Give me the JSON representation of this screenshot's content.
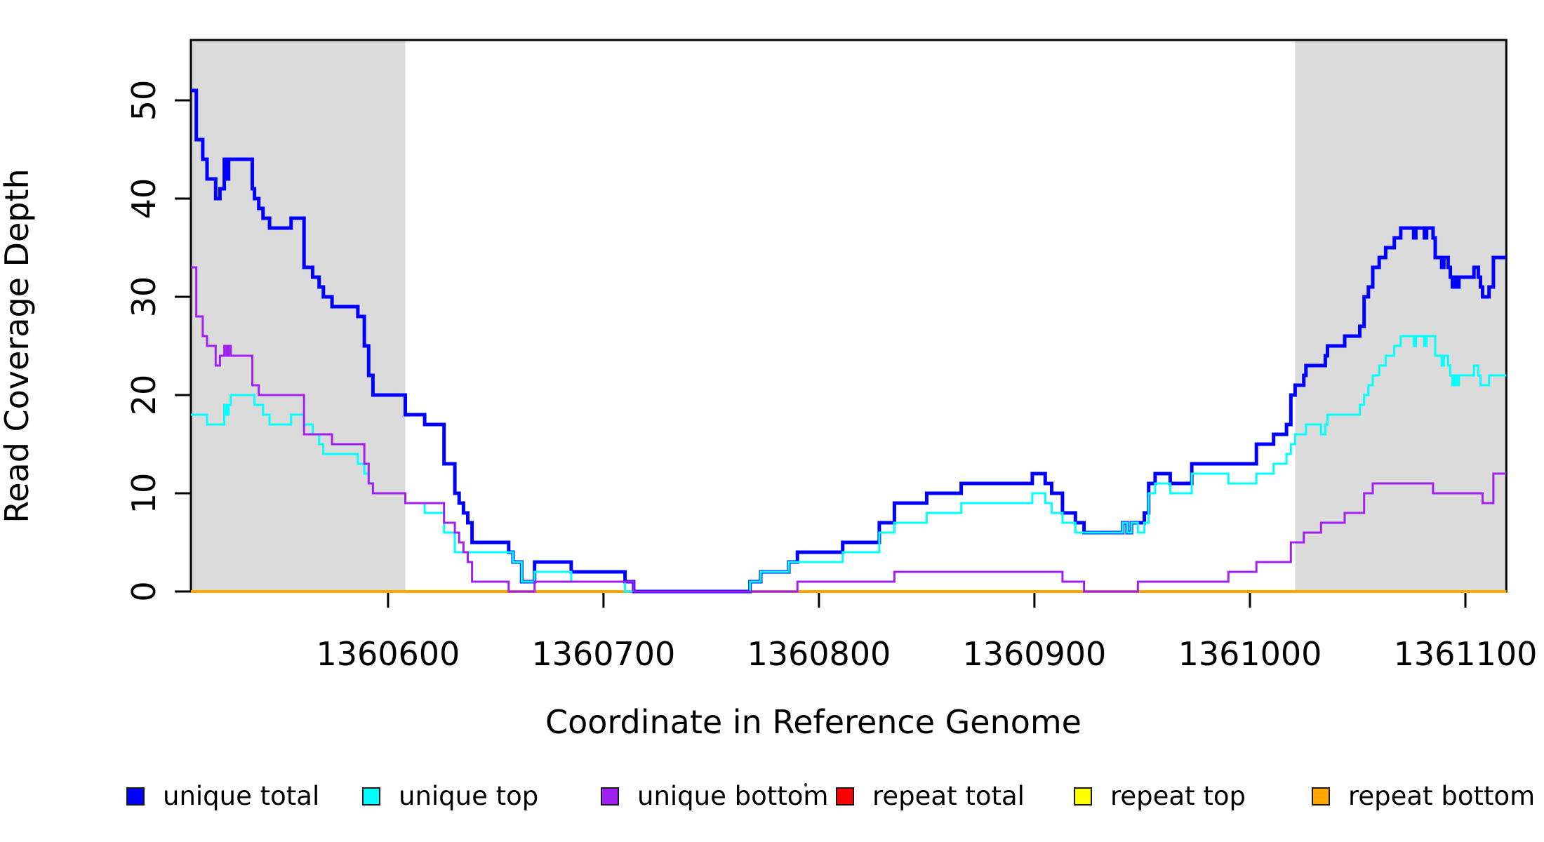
{
  "chart_data": {
    "type": "line",
    "subtype": "step-post",
    "title": "",
    "xlabel": "Coordinate in Reference Genome",
    "ylabel": "Read Coverage Depth",
    "xlim": [
      1360508.5,
      1361119
    ],
    "ylim": [
      0,
      56.14
    ],
    "x_ticks": [
      1360600,
      1360700,
      1360800,
      1360900,
      1361000,
      1361100
    ],
    "y_ticks": [
      0,
      10,
      20,
      30,
      40,
      50
    ],
    "grid": false,
    "legend_position": "bottom",
    "axis_color": "#000000",
    "highlight_regions": [
      {
        "x0": 1360508.5,
        "x1": 1360608,
        "color": "#DBDBDB"
      },
      {
        "x0": 1361021,
        "x1": 1361119,
        "color": "#DBDBDB"
      }
    ],
    "series": [
      {
        "name": "unique total",
        "color": "#0000FF",
        "line_width": 5,
        "points": [
          [
            1360508.5,
            51
          ],
          [
            1360511,
            46
          ],
          [
            1360514,
            44
          ],
          [
            1360516,
            42
          ],
          [
            1360520,
            40
          ],
          [
            1360522,
            41
          ],
          [
            1360524,
            44
          ],
          [
            1360525,
            42
          ],
          [
            1360526,
            44
          ],
          [
            1360537,
            41
          ],
          [
            1360538,
            40
          ],
          [
            1360540,
            39
          ],
          [
            1360542,
            38
          ],
          [
            1360545,
            37
          ],
          [
            1360555,
            38
          ],
          [
            1360561,
            33
          ],
          [
            1360565,
            32
          ],
          [
            1360568,
            31
          ],
          [
            1360570,
            30
          ],
          [
            1360574,
            29
          ],
          [
            1360586,
            28
          ],
          [
            1360589,
            25
          ],
          [
            1360591,
            22
          ],
          [
            1360593,
            20
          ],
          [
            1360608,
            18
          ],
          [
            1360617,
            17
          ],
          [
            1360626,
            13
          ],
          [
            1360631,
            10
          ],
          [
            1360633,
            9
          ],
          [
            1360635,
            8
          ],
          [
            1360637,
            7
          ],
          [
            1360639,
            5
          ],
          [
            1360656,
            4
          ],
          [
            1360658,
            3
          ],
          [
            1360662,
            1
          ],
          [
            1360668,
            3
          ],
          [
            1360685,
            2
          ],
          [
            1360710,
            1
          ],
          [
            1360714,
            0
          ],
          [
            1360768,
            1
          ],
          [
            1360773,
            2
          ],
          [
            1360786,
            3
          ],
          [
            1360790,
            4
          ],
          [
            1360811,
            5
          ],
          [
            1360828,
            7
          ],
          [
            1360835,
            9
          ],
          [
            1360850,
            10
          ],
          [
            1360866,
            11
          ],
          [
            1360899,
            12
          ],
          [
            1360905,
            11
          ],
          [
            1360908,
            10
          ],
          [
            1360913,
            8
          ],
          [
            1360919,
            7
          ],
          [
            1360923,
            6
          ],
          [
            1360941,
            7
          ],
          [
            1360943,
            6
          ],
          [
            1360945,
            7
          ],
          [
            1360951,
            8
          ],
          [
            1360953,
            11
          ],
          [
            1360956,
            12
          ],
          [
            1360963,
            11
          ],
          [
            1360973,
            13
          ],
          [
            1361003,
            15
          ],
          [
            1361011,
            16
          ],
          [
            1361017,
            17
          ],
          [
            1361019,
            20
          ],
          [
            1361021,
            21
          ],
          [
            1361025,
            22
          ],
          [
            1361026,
            23
          ],
          [
            1361035,
            24
          ],
          [
            1361036,
            25
          ],
          [
            1361044,
            26
          ],
          [
            1361051,
            27
          ],
          [
            1361053,
            30
          ],
          [
            1361055,
            31
          ],
          [
            1361057,
            33
          ],
          [
            1361060,
            34
          ],
          [
            1361063,
            35
          ],
          [
            1361067,
            36
          ],
          [
            1361070,
            37
          ],
          [
            1361076,
            36
          ],
          [
            1361077,
            37
          ],
          [
            1361081,
            36
          ],
          [
            1361082,
            37
          ],
          [
            1361085,
            36
          ],
          [
            1361086,
            34
          ],
          [
            1361089,
            33
          ],
          [
            1361090,
            34
          ],
          [
            1361092,
            33
          ],
          [
            1361093,
            32
          ],
          [
            1361094,
            31
          ],
          [
            1361095,
            32
          ],
          [
            1361096,
            31
          ],
          [
            1361097,
            32
          ],
          [
            1361104,
            33
          ],
          [
            1361106,
            32
          ],
          [
            1361107,
            31
          ],
          [
            1361108,
            30
          ],
          [
            1361111,
            31
          ],
          [
            1361113,
            34
          ]
        ]
      },
      {
        "name": "unique top",
        "color": "#00FFFF",
        "line_width": 3,
        "points": [
          [
            1360508.5,
            18
          ],
          [
            1360516,
            17
          ],
          [
            1360524,
            19
          ],
          [
            1360525,
            18
          ],
          [
            1360526,
            19
          ],
          [
            1360527,
            20
          ],
          [
            1360538,
            19
          ],
          [
            1360542,
            18
          ],
          [
            1360545,
            17
          ],
          [
            1360555,
            18
          ],
          [
            1360561,
            17
          ],
          [
            1360565,
            16
          ],
          [
            1360568,
            15
          ],
          [
            1360570,
            14
          ],
          [
            1360586,
            13
          ],
          [
            1360589,
            12
          ],
          [
            1360591,
            11
          ],
          [
            1360593,
            10
          ],
          [
            1360608,
            9
          ],
          [
            1360617,
            8
          ],
          [
            1360626,
            6
          ],
          [
            1360631,
            4
          ],
          [
            1360658,
            3
          ],
          [
            1360662,
            1
          ],
          [
            1360668,
            2
          ],
          [
            1360685,
            1
          ],
          [
            1360710,
            0
          ],
          [
            1360768,
            1
          ],
          [
            1360773,
            2
          ],
          [
            1360786,
            3
          ],
          [
            1360811,
            4
          ],
          [
            1360828,
            6
          ],
          [
            1360835,
            7
          ],
          [
            1360850,
            8
          ],
          [
            1360866,
            9
          ],
          [
            1360899,
            10
          ],
          [
            1360905,
            9
          ],
          [
            1360908,
            8
          ],
          [
            1360913,
            7
          ],
          [
            1360919,
            6
          ],
          [
            1360941,
            7
          ],
          [
            1360943,
            6
          ],
          [
            1360945,
            7
          ],
          [
            1360948,
            6
          ],
          [
            1360951,
            7
          ],
          [
            1360953,
            10
          ],
          [
            1360956,
            11
          ],
          [
            1360963,
            10
          ],
          [
            1360973,
            12
          ],
          [
            1360990,
            11
          ],
          [
            1361003,
            12
          ],
          [
            1361011,
            13
          ],
          [
            1361017,
            14
          ],
          [
            1361019,
            15
          ],
          [
            1361021,
            16
          ],
          [
            1361026,
            17
          ],
          [
            1361033,
            16
          ],
          [
            1361035,
            17
          ],
          [
            1361036,
            18
          ],
          [
            1361051,
            19
          ],
          [
            1361053,
            20
          ],
          [
            1361055,
            21
          ],
          [
            1361057,
            22
          ],
          [
            1361060,
            23
          ],
          [
            1361063,
            24
          ],
          [
            1361067,
            25
          ],
          [
            1361070,
            26
          ],
          [
            1361076,
            25
          ],
          [
            1361077,
            26
          ],
          [
            1361081,
            25
          ],
          [
            1361082,
            26
          ],
          [
            1361086,
            24
          ],
          [
            1361089,
            23
          ],
          [
            1361090,
            24
          ],
          [
            1361092,
            23
          ],
          [
            1361093,
            22
          ],
          [
            1361094,
            21
          ],
          [
            1361095,
            22
          ],
          [
            1361096,
            21
          ],
          [
            1361097,
            22
          ],
          [
            1361104,
            23
          ],
          [
            1361106,
            22
          ],
          [
            1361107,
            21
          ],
          [
            1361111,
            22
          ]
        ]
      },
      {
        "name": "unique bottom",
        "color": "#A020F0",
        "line_width": 3,
        "points": [
          [
            1360508.5,
            33
          ],
          [
            1360511,
            28
          ],
          [
            1360514,
            26
          ],
          [
            1360516,
            25
          ],
          [
            1360520,
            23
          ],
          [
            1360522,
            24
          ],
          [
            1360524,
            25
          ],
          [
            1360525,
            24
          ],
          [
            1360526,
            25
          ],
          [
            1360527,
            24
          ],
          [
            1360537,
            21
          ],
          [
            1360540,
            20
          ],
          [
            1360561,
            16
          ],
          [
            1360574,
            15
          ],
          [
            1360589,
            13
          ],
          [
            1360591,
            11
          ],
          [
            1360593,
            10
          ],
          [
            1360608,
            9
          ],
          [
            1360626,
            7
          ],
          [
            1360631,
            6
          ],
          [
            1360633,
            5
          ],
          [
            1360635,
            4
          ],
          [
            1360637,
            3
          ],
          [
            1360639,
            1
          ],
          [
            1360656,
            0
          ],
          [
            1360668,
            1
          ],
          [
            1360714,
            0
          ],
          [
            1360790,
            1
          ],
          [
            1360835,
            2
          ],
          [
            1360913,
            1
          ],
          [
            1360923,
            0
          ],
          [
            1360948,
            1
          ],
          [
            1360990,
            2
          ],
          [
            1361003,
            3
          ],
          [
            1361019,
            5
          ],
          [
            1361025,
            6
          ],
          [
            1361033,
            7
          ],
          [
            1361044,
            8
          ],
          [
            1361053,
            10
          ],
          [
            1361057,
            11
          ],
          [
            1361085,
            10
          ],
          [
            1361108,
            9
          ],
          [
            1361113,
            12
          ]
        ]
      },
      {
        "name": "repeat total",
        "color": "#FF0000",
        "line_width": 3,
        "points": [
          [
            1360508.5,
            0
          ]
        ]
      },
      {
        "name": "repeat top",
        "color": "#FFFF00",
        "line_width": 3,
        "points": [
          [
            1360508.5,
            0
          ]
        ]
      },
      {
        "name": "repeat bottom",
        "color": "#FFA500",
        "line_width": 4,
        "points": [
          [
            1360508.5,
            0
          ]
        ]
      }
    ],
    "draw_order": [
      3,
      4,
      5,
      0,
      1,
      2
    ]
  },
  "legend": {
    "entries": [
      {
        "label": "unique total",
        "color": "#0000FF"
      },
      {
        "label": "unique top",
        "color": "#00FFFF"
      },
      {
        "label": "unique bottom",
        "color": "#A020F0"
      },
      {
        "label": "repeat total",
        "color": "#FF0000"
      },
      {
        "label": "repeat top",
        "color": "#FFFF00"
      },
      {
        "label": "repeat bottom",
        "color": "#FFA500"
      }
    ]
  }
}
